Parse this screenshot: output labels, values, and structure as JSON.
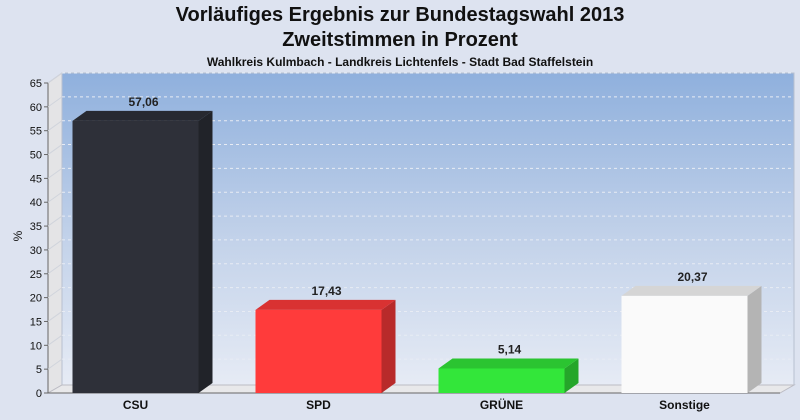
{
  "chart_data": {
    "type": "bar",
    "title": "Vorläufiges Ergebnis zur Bundestagswahl 2013",
    "title_line2": "Zweitstimmen in Prozent",
    "subtitle": "Wahlkreis Kulmbach - Landkreis Lichtenfels - Stadt Bad Staffelstein",
    "ylabel": "%",
    "xlabel": "",
    "ylim": [
      0,
      65
    ],
    "yticks": [
      "0",
      "5",
      "10",
      "15",
      "20",
      "25",
      "30",
      "35",
      "40",
      "45",
      "50",
      "55",
      "60",
      "65"
    ],
    "categories": [
      "CSU",
      "SPD",
      "GRÜNE",
      "Sonstige"
    ],
    "values": [
      57.06,
      17.43,
      5.14,
      20.37
    ],
    "value_labels": [
      "57,06",
      "17,43",
      "5,14",
      "20,37"
    ],
    "colors": [
      "#2e3039",
      "#ff3b3b",
      "#33e63a",
      "#fafafa"
    ],
    "grid": true,
    "legend": "none"
  }
}
